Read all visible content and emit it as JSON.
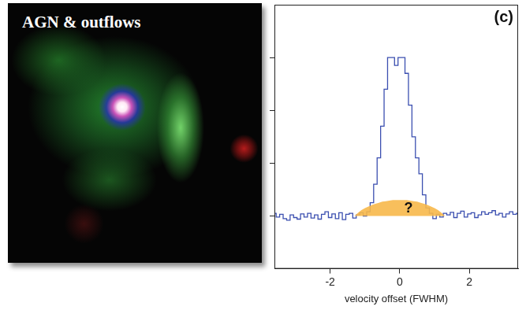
{
  "image_panel": {
    "title": "AGN & outflows"
  },
  "chart_data": {
    "type": "line",
    "panel_label": "(c)",
    "x_label": "velocity offset (FWHM)",
    "xlim": [
      -3.6,
      3.4
    ],
    "xticks": [
      -2,
      0,
      2
    ],
    "ylim": [
      -1,
      4
    ],
    "yticks": [
      0,
      1,
      2,
      3
    ],
    "grid": false,
    "tick_labels": "x",
    "x": [
      -3.6,
      -3.5,
      -3.4,
      -3.3,
      -3.2,
      -3.1,
      -3.0,
      -2.9,
      -2.8,
      -2.7,
      -2.6,
      -2.5,
      -2.4,
      -2.3,
      -2.2,
      -2.1,
      -2.0,
      -1.9,
      -1.8,
      -1.7,
      -1.6,
      -1.5,
      -1.4,
      -1.3,
      -1.2,
      -1.1,
      -1.0,
      -0.9,
      -0.8,
      -0.7,
      -0.6,
      -0.5,
      -0.4,
      -0.3,
      -0.2,
      -0.1,
      0.0,
      0.1,
      0.2,
      0.3,
      0.4,
      0.5,
      0.6,
      0.7,
      0.8,
      0.9,
      1.0,
      1.1,
      1.2,
      1.3,
      1.4,
      1.5,
      1.6,
      1.7,
      1.8,
      1.9,
      2.0,
      2.1,
      2.2,
      2.3,
      2.4,
      2.5,
      2.6,
      2.7,
      2.8,
      2.9,
      3.0,
      3.1,
      3.2,
      3.3,
      3.4
    ],
    "series": [
      {
        "color": "#3b4fb0",
        "line_style": "steps",
        "values": [
          0.05,
          -0.02,
          0.03,
          -0.05,
          -0.08,
          0.02,
          -0.03,
          -0.06,
          0.04,
          -0.02,
          0.05,
          -0.04,
          0.02,
          -0.06,
          0.03,
          0.08,
          -0.03,
          0.04,
          -0.05,
          0.06,
          -0.07,
          0.03,
          0.05,
          -0.04,
          0.02,
          0.06,
          0.0,
          0.08,
          0.25,
          0.6,
          1.1,
          1.7,
          2.4,
          3.0,
          3.0,
          2.85,
          3.0,
          3.0,
          2.7,
          2.1,
          1.5,
          1.1,
          0.8,
          0.4,
          0.15,
          0.05,
          -0.05,
          0.03,
          -0.02,
          0.05,
          0.02,
          0.07,
          -0.03,
          0.05,
          0.09,
          -0.02,
          0.04,
          0.06,
          -0.03,
          0.02,
          0.08,
          0.03,
          0.06,
          0.1,
          0.02,
          0.05,
          -0.02,
          0.04,
          0.08,
          0.03,
          0.05
        ]
      },
      {
        "color": "#f7b84a",
        "type": "area",
        "values": [
          null,
          null,
          null,
          null,
          null,
          null,
          null,
          null,
          null,
          null,
          null,
          null,
          null,
          null,
          null,
          null,
          null,
          null,
          null,
          null,
          null,
          null,
          null,
          0,
          0.06,
          0.11,
          0.15,
          0.18,
          0.21,
          0.23,
          0.25,
          0.27,
          0.28,
          0.29,
          0.3,
          0.3,
          0.3,
          0.3,
          0.3,
          0.29,
          0.28,
          0.27,
          0.25,
          0.23,
          0.21,
          0.18,
          0.15,
          0.11,
          0.06,
          0,
          null,
          null,
          null,
          null,
          null,
          null,
          null,
          null,
          null,
          null,
          null,
          null,
          null,
          null,
          null,
          null,
          null,
          null,
          null,
          null,
          null
        ]
      }
    ],
    "annotations": [
      {
        "text": "?",
        "x": 0.25,
        "y": 0.14
      }
    ]
  }
}
